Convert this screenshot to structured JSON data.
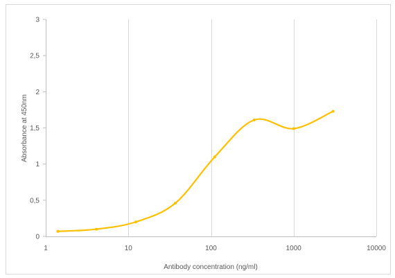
{
  "chart_data": {
    "type": "line",
    "title": "",
    "xlabel": "Antibody concentration (ng/ml)",
    "ylabel": "Absorbance at 450nm",
    "x_scale": "log",
    "xlim": [
      1,
      10000
    ],
    "ylim": [
      0,
      3
    ],
    "x_ticks": [
      1,
      10,
      100,
      1000,
      10000
    ],
    "x_tick_labels": [
      "1",
      "10",
      "100",
      "1000",
      "10000"
    ],
    "y_ticks": [
      0,
      0.5,
      1,
      1.5,
      2,
      2.5,
      3
    ],
    "y_tick_labels": [
      "0",
      "0,5",
      "1",
      "1,5",
      "2",
      "2,5",
      "3"
    ],
    "grid": "vertical-major",
    "legend": "none",
    "series": [
      {
        "color": "#ffc000",
        "smooth": true,
        "x": [
          1.4,
          4.1,
          12.3,
          37,
          111,
          333,
          1000,
          3000
        ],
        "y": [
          0.07,
          0.1,
          0.2,
          0.46,
          1.1,
          1.61,
          1.49,
          1.73
        ]
      }
    ]
  }
}
